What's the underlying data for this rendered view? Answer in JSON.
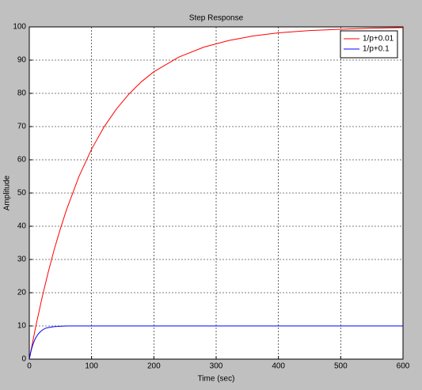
{
  "chart_data": {
    "type": "line",
    "title": "Step Response",
    "xlabel": "Time (sec)",
    "ylabel": "Amplitude",
    "xlim": [
      0,
      600
    ],
    "ylim": [
      0,
      100
    ],
    "xticks": [
      0,
      100,
      200,
      300,
      400,
      500,
      600
    ],
    "yticks": [
      0,
      10,
      20,
      30,
      40,
      50,
      60,
      70,
      80,
      90,
      100
    ],
    "grid": true,
    "legend": "upper-right",
    "series": [
      {
        "name": "1/p+0.01",
        "color": "#ff0000",
        "x": [
          0,
          10,
          20,
          30,
          40,
          50,
          60,
          80,
          100,
          120,
          140,
          160,
          180,
          200,
          240,
          280,
          320,
          360,
          400,
          450,
          500,
          550,
          600
        ],
        "values": [
          0,
          9.5,
          18.1,
          25.9,
          33.0,
          39.3,
          45.1,
          55.1,
          63.2,
          69.9,
          75.3,
          79.8,
          83.5,
          86.5,
          90.9,
          93.9,
          95.9,
          97.3,
          98.2,
          98.9,
          99.3,
          99.6,
          99.8
        ]
      },
      {
        "name": "1/p+0.1",
        "color": "#0000ff",
        "x": [
          0,
          2,
          4,
          6,
          8,
          10,
          14,
          18,
          22,
          26,
          30,
          40,
          50,
          60,
          600
        ],
        "values": [
          0,
          1.8,
          3.3,
          4.5,
          5.5,
          6.3,
          7.5,
          8.3,
          8.9,
          9.3,
          9.5,
          9.8,
          9.9,
          10,
          10
        ]
      }
    ]
  }
}
